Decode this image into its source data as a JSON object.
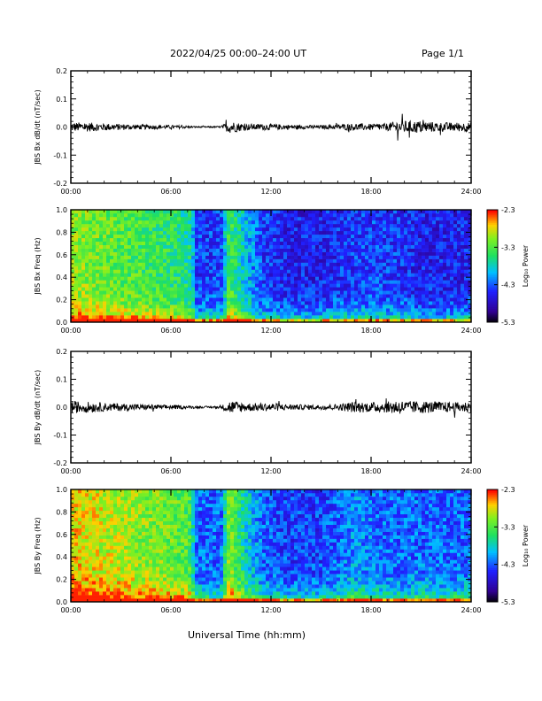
{
  "header": {
    "title": "2022/04/25  00:00–24:00 UT",
    "page": "Page 1/1"
  },
  "footer": {
    "xlabel": "Universal Time (hh:mm)"
  },
  "chart_data": [
    {
      "type": "line",
      "ylabel": "JBS Bx dB/dt (nT/sec)",
      "xlim": [
        0,
        24
      ],
      "ylim": [
        -0.2,
        0.2
      ],
      "x_ticks": [
        "00:00",
        "06:00",
        "12:00",
        "18:00",
        "24:00"
      ],
      "y_ticks": [
        "-0.2",
        "-0.1",
        "0.0",
        "0.1",
        "0.2"
      ],
      "series": [
        {
          "x": [
            0,
            1,
            2,
            3,
            4,
            5,
            6,
            7,
            7.5,
            8,
            9,
            9.5,
            10,
            10.5,
            11,
            12,
            13,
            14,
            15,
            16,
            17,
            18,
            19,
            19.5,
            20,
            20.5,
            21,
            22,
            23,
            24
          ],
          "amplitude": [
            0.015,
            0.015,
            0.012,
            0.01,
            0.008,
            0.007,
            0.006,
            0.004,
            0.003,
            0.002,
            0.003,
            0.02,
            0.015,
            0.01,
            0.01,
            0.01,
            0.008,
            0.006,
            0.006,
            0.008,
            0.012,
            0.01,
            0.012,
            0.02,
            0.02,
            0.02,
            0.02,
            0.015,
            0.015,
            0.015
          ]
        }
      ]
    },
    {
      "type": "heatmap",
      "ylabel": "JBS Bx Freq (Hz)",
      "xlim": [
        0,
        24
      ],
      "ylim": [
        0,
        1.0
      ],
      "x_ticks": [
        "00:00",
        "06:00",
        "12:00",
        "18:00",
        "24:00"
      ],
      "y_ticks": [
        "0.0",
        "0.2",
        "0.4",
        "0.6",
        "0.8",
        "1.0"
      ],
      "colorbar": {
        "label": "Log₁₀ Power",
        "range": [
          -5.3,
          -2.3
        ],
        "ticks": [
          "-2.3",
          "-3.3",
          "-4.3",
          "-5.3"
        ]
      },
      "activity": {
        "x": [
          0,
          2,
          4,
          6,
          7.2,
          7.5,
          9,
          9.5,
          10.5,
          11.5,
          13,
          15,
          17,
          19,
          21,
          24
        ],
        "level": [
          0.75,
          0.7,
          0.65,
          0.6,
          0.55,
          0.3,
          0.3,
          0.65,
          0.45,
          0.3,
          0.25,
          0.25,
          0.3,
          0.3,
          0.25,
          0.25
        ]
      }
    },
    {
      "type": "line",
      "ylabel": "JBS By dB/dt (nT/sec)",
      "xlim": [
        0,
        24
      ],
      "ylim": [
        -0.2,
        0.2
      ],
      "x_ticks": [
        "00:00",
        "06:00",
        "12:00",
        "18:00",
        "24:00"
      ],
      "y_ticks": [
        "-0.2",
        "-0.1",
        "0.0",
        "0.1",
        "0.2"
      ],
      "series": [
        {
          "x": [
            0,
            1,
            2,
            3,
            4,
            5,
            6,
            7,
            7.5,
            8,
            9,
            9.5,
            10,
            10.5,
            11,
            12,
            13,
            14,
            15,
            16,
            17,
            18,
            19,
            19.5,
            20,
            20.5,
            21,
            22,
            23,
            24
          ],
          "amplitude": [
            0.02,
            0.018,
            0.014,
            0.012,
            0.01,
            0.008,
            0.007,
            0.005,
            0.004,
            0.003,
            0.004,
            0.022,
            0.018,
            0.014,
            0.013,
            0.013,
            0.01,
            0.008,
            0.008,
            0.01,
            0.018,
            0.016,
            0.018,
            0.025,
            0.02,
            0.02,
            0.02,
            0.018,
            0.016,
            0.018
          ]
        }
      ]
    },
    {
      "type": "heatmap",
      "ylabel": "JBS By Freq (Hz)",
      "xlim": [
        0,
        24
      ],
      "ylim": [
        0,
        1.0
      ],
      "x_ticks": [
        "00:00",
        "06:00",
        "12:00",
        "18:00",
        "24:00"
      ],
      "y_ticks": [
        "0.0",
        "0.2",
        "0.4",
        "0.6",
        "0.8",
        "1.0"
      ],
      "colorbar": {
        "label": "Log₁₀ Power",
        "range": [
          -5.3,
          -2.3
        ],
        "ticks": [
          "-2.3",
          "-3.3",
          "-4.3",
          "-5.3"
        ]
      },
      "activity": {
        "x": [
          0,
          2,
          4,
          6,
          7.2,
          7.5,
          9,
          9.5,
          10.5,
          11.5,
          13,
          15,
          17,
          19,
          21,
          24
        ],
        "level": [
          0.85,
          0.8,
          0.75,
          0.7,
          0.65,
          0.35,
          0.35,
          0.75,
          0.5,
          0.35,
          0.3,
          0.3,
          0.4,
          0.35,
          0.35,
          0.35
        ]
      }
    }
  ]
}
